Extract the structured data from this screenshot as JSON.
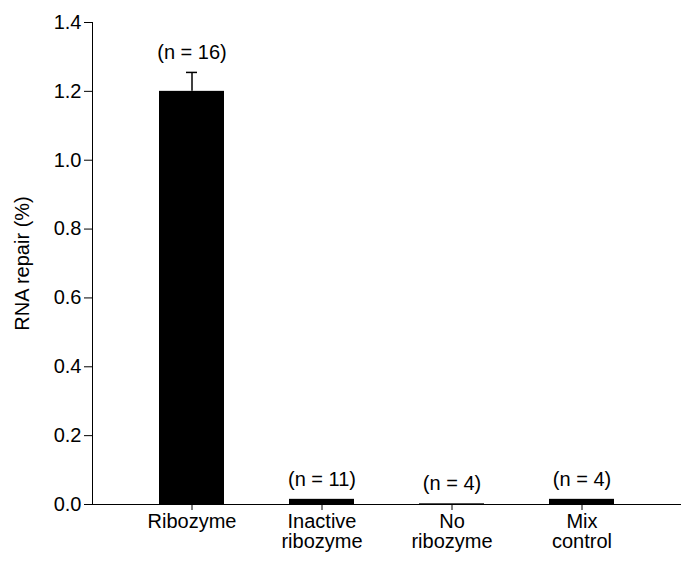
{
  "chart_data": {
    "type": "bar",
    "y_label": "RNA repair (%)",
    "categories": [
      "Ribozyme",
      "Inactive\nribozyme",
      "No\nribozyme",
      "Mix\ncontrol"
    ],
    "values": [
      1.2,
      0.015,
      0.002,
      0.015
    ],
    "errors": [
      0.055,
      null,
      null,
      null
    ],
    "annotations": [
      "(n = 16)",
      "(n = 11)",
      "(n = 4)",
      "(n = 4)"
    ],
    "color": "#000000",
    "ylim": [
      0,
      1.4
    ],
    "yticks": [
      {
        "value": 0,
        "label": "0.0"
      },
      0.2,
      0.4,
      0.6,
      0.8,
      {
        "value": 1,
        "label": "1.0"
      },
      1.2,
      1.4
    ],
    "grid": false
  }
}
